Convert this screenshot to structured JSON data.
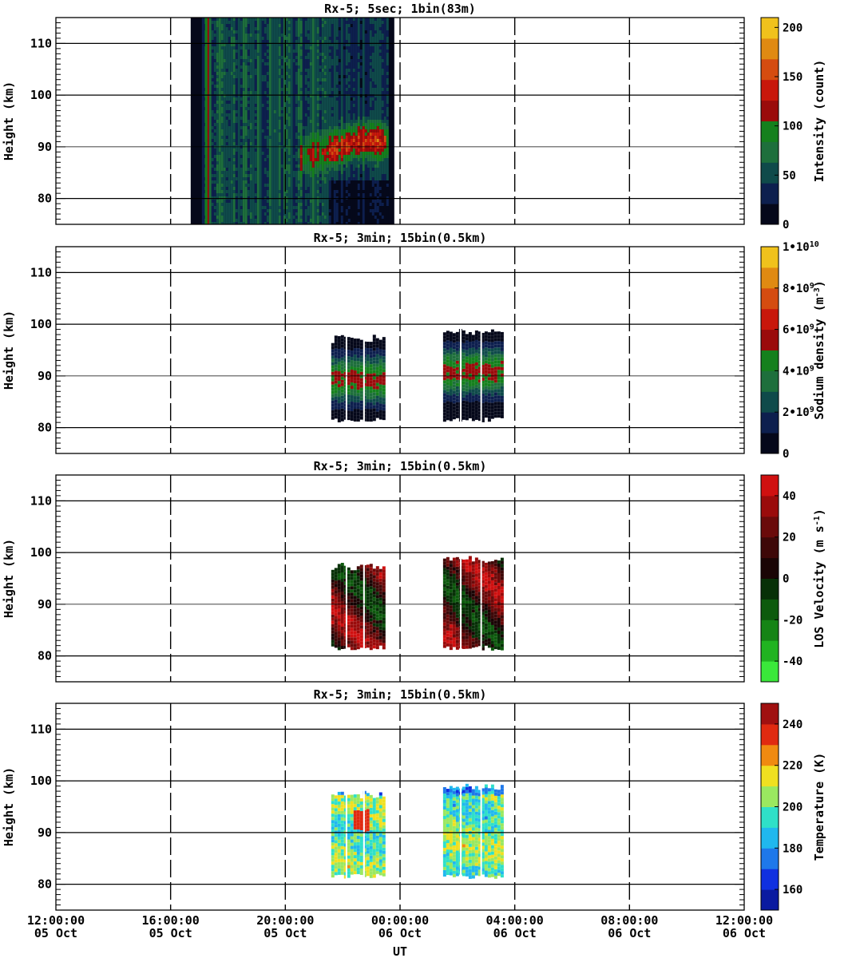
{
  "chart_data": {
    "type": "heatmap",
    "time_axis": {
      "label": "UT",
      "range": [
        "2016-10-05 12:00:00",
        "2016-10-06 12:00:00"
      ],
      "ticks": [
        {
          "time": "12:00:00",
          "date": "05 Oct"
        },
        {
          "time": "16:00:00",
          "date": "05 Oct"
        },
        {
          "time": "20:00:00",
          "date": "05 Oct"
        },
        {
          "time": "00:00:00",
          "date": "06 Oct"
        },
        {
          "time": "04:00:00",
          "date": "06 Oct"
        },
        {
          "time": "08:00:00",
          "date": "06 Oct"
        },
        {
          "time": "12:00:00",
          "date": "06 Oct"
        }
      ],
      "dashed_vertical_lines": true
    },
    "panels": [
      {
        "title": "Rx-5;  5sec; 1bin(83m)",
        "ylabel": "Height (km)",
        "ylim": [
          75,
          115
        ],
        "yticks": [
          "80",
          "90",
          "100",
          "110"
        ],
        "grid_heights_km": [
          80,
          90,
          100,
          110
        ],
        "colorbar": {
          "label": "Intensity (count)",
          "range": [
            0,
            210
          ],
          "tick_labels": [
            "0",
            "50",
            "100",
            "150",
            "200"
          ],
          "tick_values": [
            0,
            50,
            100,
            150,
            200
          ],
          "colors": [
            "#05081a",
            "#0d1f4e",
            "#0f4a4a",
            "#1e6f3c",
            "#15801d",
            "#9a0b0b",
            "#c8170b",
            "#d54c10",
            "#e08a12",
            "#f0c21c"
          ]
        },
        "observation_hours": [
          4.7,
          11.8
        ],
        "data_description": "raw photon counts; sodium layer peak ~87-93 km, counts up to ~130"
      },
      {
        "title": "Rx-5; 3min; 15bin(0.5km)",
        "ylabel": "Height (km)",
        "ylim": [
          75,
          115
        ],
        "yticks": [
          "80",
          "90",
          "100",
          "110"
        ],
        "grid_heights_km": [
          80,
          90,
          100,
          110
        ],
        "colorbar": {
          "label": "Sodium density",
          "label_units": "(m^-3)",
          "range": [
            0,
            10000000000
          ],
          "tick_labels": [
            "0",
            "2•10^9",
            "4•10^9",
            "6•10^9",
            "8•10^9",
            "1•10^10"
          ],
          "tick_values": [
            0,
            2000000000,
            4000000000,
            6000000000,
            8000000000,
            10000000000
          ],
          "colors": [
            "#05081a",
            "#0d1f4e",
            "#0f4a4a",
            "#1e6f3c",
            "#15801d",
            "#9a0b0b",
            "#c8170b",
            "#d54c10",
            "#e08a12",
            "#f0c21c"
          ]
        },
        "segments": [
          {
            "start_hour": 9.6,
            "end_hour": 11.4,
            "bottom_km": 82,
            "top_km": 97.5
          },
          {
            "start_hour": 13.5,
            "end_hour": 15.6,
            "bottom_km": 82,
            "top_km": 99
          }
        ],
        "data_description": "density peak ~4-6e9 m^-3 near 88-92 km"
      },
      {
        "title": "Rx-5; 3min; 15bin(0.5km)",
        "ylabel": "Height (km)",
        "ylim": [
          75,
          115
        ],
        "yticks": [
          "80",
          "90",
          "100",
          "110"
        ],
        "grid_heights_km": [
          80,
          90,
          100,
          110
        ],
        "colorbar": {
          "label": "LOS Velocity",
          "label_units": "(m s^-1)",
          "range": [
            -50,
            50
          ],
          "tick_labels": [
            "-40",
            "-20",
            "0",
            "20",
            "40"
          ],
          "tick_values": [
            -40,
            -20,
            0,
            20,
            40
          ],
          "colors": [
            "#3ae83a",
            "#21b321",
            "#168416",
            "#0d5a0d",
            "#073007",
            "#1a0505",
            "#3e0808",
            "#6a0a0a",
            "#9a0b0b",
            "#d01010"
          ]
        },
        "segments": [
          {
            "start_hour": 9.6,
            "end_hour": 11.4,
            "bottom_km": 82,
            "top_km": 97.5
          },
          {
            "start_hour": 13.5,
            "end_hour": 15.6,
            "bottom_km": 82,
            "top_km": 99
          }
        ],
        "data_description": "LOS velocity mostly -20 to +50 m/s"
      },
      {
        "title": "Rx-5; 3min; 15bin(0.5km)",
        "ylabel": "Height (km)",
        "ylim": [
          75,
          115
        ],
        "yticks": [
          "80",
          "90",
          "100",
          "110"
        ],
        "grid_heights_km": [
          80,
          90,
          100,
          110
        ],
        "colorbar": {
          "label": "Temperature (K)",
          "range": [
            150,
            250
          ],
          "tick_labels": [
            "160",
            "180",
            "200",
            "220",
            "240"
          ],
          "tick_values": [
            160,
            180,
            200,
            220,
            240
          ],
          "colors": [
            "#0a1aa0",
            "#1030e0",
            "#1e78ea",
            "#20b8ee",
            "#2fe0c8",
            "#9ae860",
            "#f0e020",
            "#f08a10",
            "#e02a10",
            "#a01010"
          ]
        },
        "segments": [
          {
            "start_hour": 9.6,
            "end_hour": 11.4,
            "bottom_km": 82,
            "top_km": 97.5
          },
          {
            "start_hour": 13.5,
            "end_hour": 15.6,
            "bottom_km": 82,
            "top_km": 99
          }
        ],
        "data_description": "temperature mostly 185-215 K, warm spot ~230 K near 92 km"
      }
    ]
  }
}
